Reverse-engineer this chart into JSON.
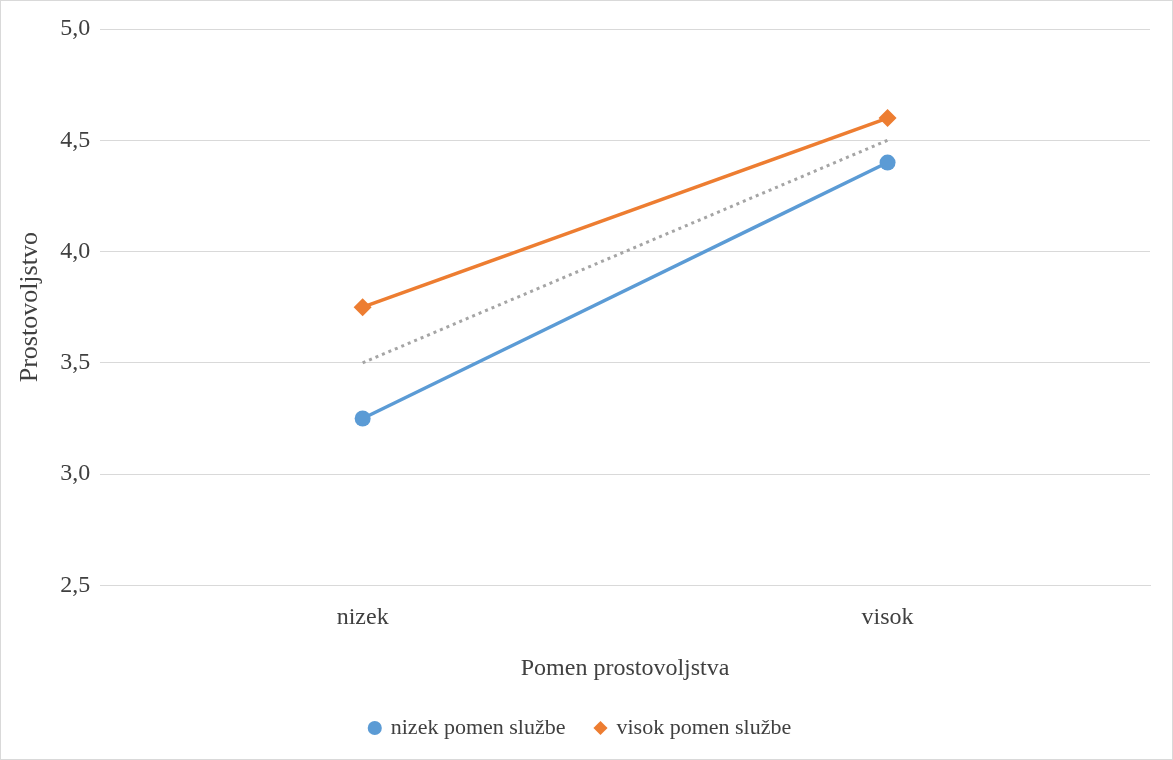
{
  "chart_data": {
    "type": "line",
    "xlabel": "Pomen prostovoljstva",
    "ylabel": "Prostovoljstvo",
    "categories": [
      "nizek",
      "visok"
    ],
    "ylim": [
      2.5,
      5
    ],
    "yticks": [
      {
        "value": 2.5,
        "label": "2,5"
      },
      {
        "value": 3,
        "label": "3,0"
      },
      {
        "value": 3.5,
        "label": "3,5"
      },
      {
        "value": 4,
        "label": "4,0"
      },
      {
        "value": 4.5,
        "label": "4,5"
      },
      {
        "value": 5,
        "label": "5,0"
      }
    ],
    "grid": "y",
    "legend": "bottom",
    "series": [
      {
        "name": "nizek pomen službe",
        "color": "#5b9bd5",
        "values": [
          3.25,
          4.4
        ],
        "marker": "circle",
        "line_style": "solid"
      },
      {
        "name": "visok pomen službe",
        "color": "#ed7d31",
        "values": [
          3.75,
          4.6
        ],
        "marker": "diamond",
        "line_style": "solid"
      },
      {
        "color": "#a5a5a5",
        "values": [
          3.5,
          4.5
        ],
        "marker": "none",
        "line_style": "dotted"
      }
    ]
  }
}
